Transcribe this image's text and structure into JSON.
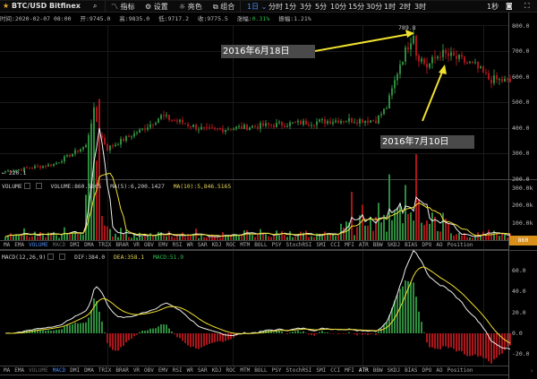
{
  "header": {
    "symbol": "BTC/USD Bitfinex",
    "indicators": "指标",
    "settings": "设置",
    "theme": "亮色",
    "combo": "组合",
    "interval": "1日 ⌄",
    "periods": [
      "分时",
      "1分",
      "3分",
      "5分",
      "10分",
      "15分",
      "30分",
      "1时",
      "2时",
      "3时"
    ],
    "seconds": "1秒"
  },
  "info": {
    "time": "时间:2020-02-07 08:00",
    "open": "开:9745.0",
    "high": "高:9835.0",
    "low": "低:9717.2",
    "close": "收:9775.5",
    "change_label": "涨幅:",
    "change": "0.31%",
    "amp": "振幅:1.21%"
  },
  "price_axis": [
    "800.0",
    "700.0",
    "600.0",
    "500.0",
    "400.0",
    "300.0",
    "200.0"
  ],
  "annotations": {
    "high": "789.8",
    "low": "← 220.1",
    "note1": "2016年6月18日",
    "note2": "2016年7月10日"
  },
  "volume": {
    "title": "VOLUME",
    "value": "VOLUME:860.5605",
    "ma5": "MA(5):6,200.1427",
    "ma10": "MA(10):5,846.5165",
    "axis": [
      "300.0k",
      "200.0k",
      "100.0k"
    ],
    "current": "860"
  },
  "macd": {
    "title": "MACD(12,26,9)",
    "dif": "DIF:384.0",
    "dea": "DEA:358.1",
    "macd": "MACD:51.9",
    "axis": [
      "60.0",
      "40.0",
      "20.0",
      "0.0",
      "-20.0"
    ]
  },
  "tabs1": [
    "MA",
    "EMA",
    "VOLUME",
    "MACD",
    "DMI",
    "DMA",
    "TRIX",
    "BRAR",
    "VR",
    "OBV",
    "EMV",
    "RSI",
    "WR",
    "SAR",
    "KDJ",
    "ROC",
    "MTM",
    "BOLL",
    "PSY",
    "StochRSI",
    "SMI",
    "CCI",
    "MFI",
    "ATR",
    "BBW",
    "SKDJ",
    "BIAS",
    "DPO",
    "AO",
    "Position"
  ],
  "tabs2": [
    "MA",
    "EMA",
    "VOLUME",
    "MACD",
    "DMI",
    "DMA",
    "TRIX",
    "BRAR",
    "VR",
    "OBV",
    "EMV",
    "RSI",
    "WR",
    "SAR",
    "KDJ",
    "ROC",
    "MTM",
    "BOLL",
    "PSY",
    "StochRSI",
    "SMI",
    "CCI",
    "MFI",
    "ATR",
    "BBW",
    "SKDJ",
    "BIAS",
    "DPO",
    "AO",
    "Position"
  ],
  "colors": {
    "up": "#2e8b3e",
    "down": "#a8161c",
    "yellow": "#f0e030",
    "accent": "#d9901a"
  },
  "chart_data": {
    "type": "candlestick",
    "price_range": [
      200,
      800
    ],
    "keyframes": [
      [
        0,
        230
      ],
      [
        18,
        258
      ],
      [
        30,
        330
      ],
      [
        33,
        470
      ],
      [
        35,
        380
      ],
      [
        38,
        320
      ],
      [
        52,
        400
      ],
      [
        58,
        445
      ],
      [
        75,
        390
      ],
      [
        98,
        410
      ],
      [
        125,
        430
      ],
      [
        138,
        430
      ],
      [
        142,
        480
      ],
      [
        147,
        650
      ],
      [
        152,
        770
      ],
      [
        153,
        690
      ],
      [
        157,
        640
      ],
      [
        162,
        690
      ],
      [
        168,
        670
      ],
      [
        175,
        640
      ],
      [
        180,
        590
      ],
      [
        188,
        580
      ]
    ]
  }
}
